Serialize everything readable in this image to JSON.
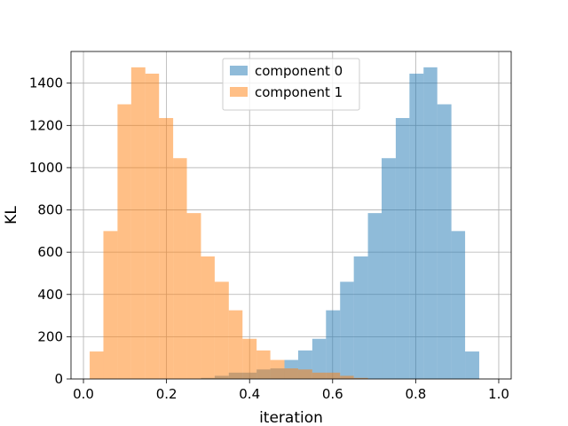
{
  "chart_data": {
    "type": "bar",
    "title": "",
    "xlabel": "iteration",
    "ylabel": "KL",
    "xlim": [
      -0.03,
      1.03
    ],
    "ylim": [
      0,
      1550
    ],
    "grid": true,
    "legend_position": "top-center",
    "xticks": [
      0.0,
      0.2,
      0.4,
      0.6,
      0.8,
      1.0
    ],
    "xtick_labels": [
      "0.0",
      "0.2",
      "0.4",
      "0.6",
      "0.8",
      "1.0"
    ],
    "yticks": [
      0,
      200,
      400,
      600,
      800,
      1000,
      1200,
      1400
    ],
    "ytick_labels": [
      "0",
      "200",
      "400",
      "600",
      "800",
      "1000",
      "1200",
      "1400"
    ],
    "bin_edges": [
      0.015,
      0.048,
      0.082,
      0.115,
      0.149,
      0.182,
      0.216,
      0.249,
      0.283,
      0.316,
      0.35,
      0.383,
      0.417,
      0.45,
      0.484,
      0.517,
      0.551,
      0.584,
      0.618,
      0.651,
      0.685,
      0.718,
      0.752,
      0.785,
      0.819,
      0.852,
      0.886,
      0.919,
      0.953,
      0.986
    ],
    "series": [
      {
        "name": "component 0",
        "color": "#1f77b4",
        "alpha": 0.5,
        "bin_start": 0.283,
        "values": [
          5,
          15,
          30,
          30,
          45,
          50,
          90,
          135,
          190,
          325,
          460,
          580,
          785,
          1045,
          1235,
          1445,
          1475,
          1300,
          700,
          130
        ]
      },
      {
        "name": "component 1",
        "color": "#ff7f0e",
        "alpha": 0.5,
        "bin_start": 0.015,
        "values": [
          130,
          700,
          1300,
          1475,
          1445,
          1235,
          1045,
          785,
          580,
          460,
          325,
          190,
          135,
          90,
          50,
          45,
          30,
          30,
          15,
          5
        ]
      }
    ]
  }
}
